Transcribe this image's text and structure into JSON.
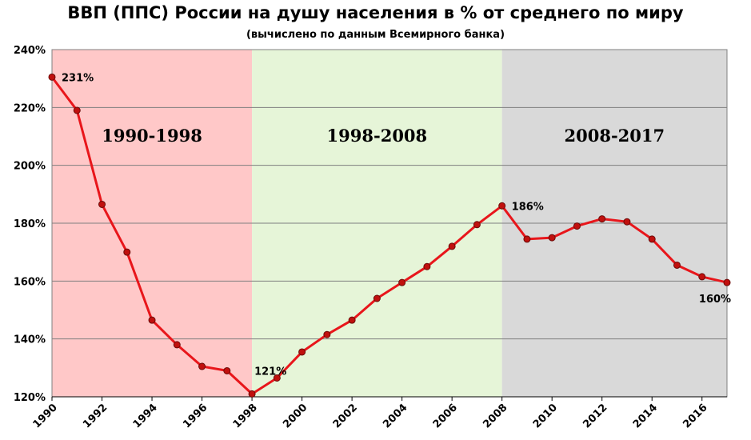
{
  "chart_data": {
    "type": "line",
    "title": "ВВП (ППС) России на душу населения в % от среднего по миру",
    "subtitle": "(вычислено по данным Всемирного банка)",
    "xlabel": "",
    "ylabel": "",
    "ylim": [
      120,
      240
    ],
    "xlim": [
      1990,
      2017
    ],
    "y_ticks": [
      "120%",
      "140%",
      "160%",
      "180%",
      "200%",
      "220%",
      "240%"
    ],
    "x_ticks": [
      "1990",
      "1992",
      "1994",
      "1996",
      "1998",
      "2000",
      "2002",
      "2004",
      "2006",
      "2008",
      "2010",
      "2012",
      "2014",
      "2016"
    ],
    "grid": true,
    "series_color": "#e8161b",
    "marker_color": "#c0100e",
    "periods": [
      {
        "label": "1990-1998",
        "from": 1990,
        "to": 1998,
        "color": "#ffc8c8"
      },
      {
        "label": "1998-2008",
        "from": 1998,
        "to": 2008,
        "color": "#e6f5d8"
      },
      {
        "label": "2008-2017",
        "from": 2008,
        "to": 2017,
        "color": "#d9d9d9"
      }
    ],
    "x": [
      1990,
      1991,
      1992,
      1993,
      1994,
      1995,
      1996,
      1997,
      1998,
      1999,
      2000,
      2001,
      2002,
      2003,
      2004,
      2005,
      2006,
      2007,
      2008,
      2009,
      2010,
      2011,
      2012,
      2013,
      2014,
      2015,
      2016,
      2017
    ],
    "values": [
      230.5,
      219,
      186.5,
      170,
      146.5,
      138,
      130.5,
      129,
      121,
      126.5,
      135.5,
      141.5,
      146.5,
      154,
      159.5,
      165,
      172,
      179.5,
      186,
      174.5,
      175,
      179,
      181.5,
      180.5,
      174.5,
      165.5,
      161.5,
      159.5
    ],
    "annotations": [
      {
        "x": 1990,
        "y": 230.5,
        "text": "231%",
        "pos": "right"
      },
      {
        "x": 1998,
        "y": 121,
        "text": "121%",
        "pos": "above-right"
      },
      {
        "x": 2008,
        "y": 186,
        "text": "186%",
        "pos": "right"
      },
      {
        "x": 2017,
        "y": 159.5,
        "text": "160%",
        "pos": "below-left"
      }
    ]
  }
}
